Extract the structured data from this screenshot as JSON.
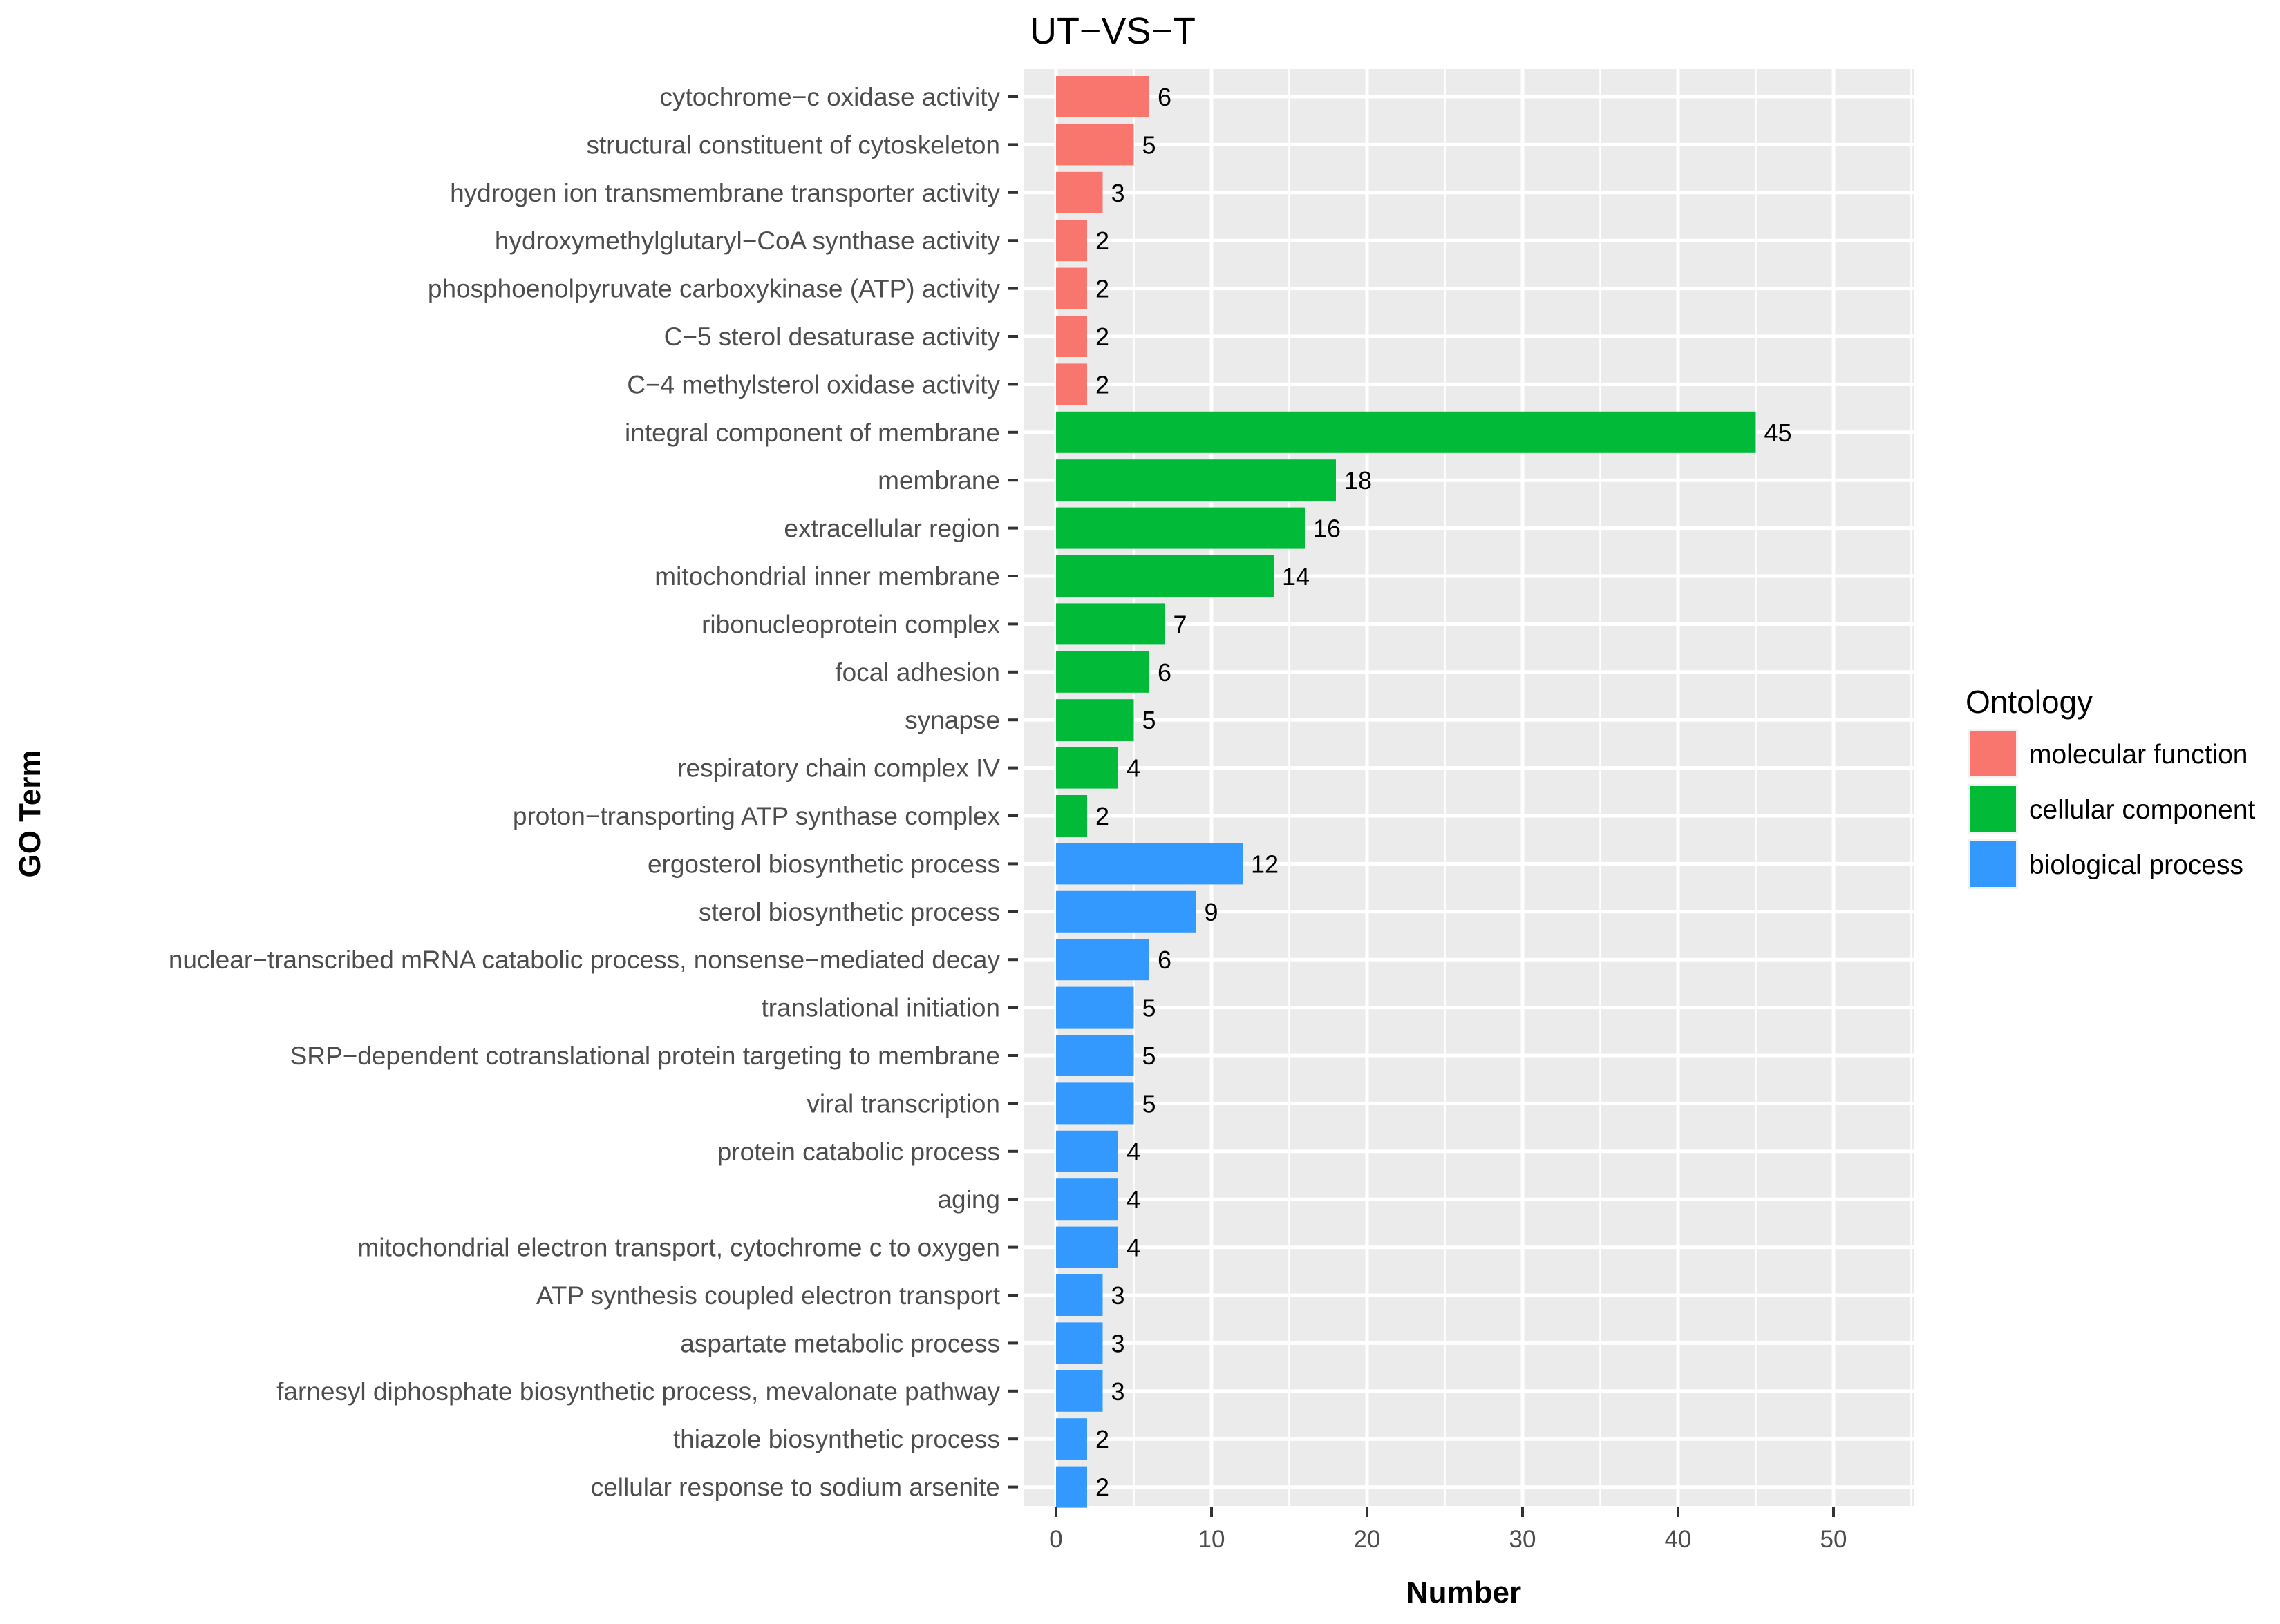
{
  "chart_data": {
    "type": "bar",
    "orientation": "horizontal",
    "title": "UT−VS−T",
    "xlabel": "Number",
    "ylabel": "GO Term",
    "xlim": [
      0,
      55
    ],
    "xticks": [
      0,
      10,
      20,
      30,
      40,
      50
    ],
    "grid": true,
    "legend": {
      "title": "Ontology",
      "placement": "right",
      "entries": [
        {
          "label": "molecular function",
          "color": "#F8766D"
        },
        {
          "label": "cellular component",
          "color": "#00BA38"
        },
        {
          "label": "biological process",
          "color": "#3399FF"
        }
      ]
    },
    "categories": [
      "cytochrome−c oxidase activity",
      "structural constituent of cytoskeleton",
      "hydrogen ion transmembrane transporter activity",
      "hydroxymethylglutaryl−CoA synthase activity",
      "phosphoenolpyruvate carboxykinase (ATP) activity",
      "C−5 sterol desaturase activity",
      "C−4 methylsterol oxidase activity",
      "integral component of membrane",
      "membrane",
      "extracellular region",
      "mitochondrial inner membrane",
      "ribonucleoprotein complex",
      "focal adhesion",
      "synapse",
      "respiratory chain complex IV",
      "proton−transporting ATP synthase complex",
      "ergosterol biosynthetic process",
      "sterol biosynthetic process",
      "nuclear−transcribed mRNA catabolic process, nonsense−mediated decay",
      "translational initiation",
      "SRP−dependent cotranslational protein targeting to membrane",
      "viral transcription",
      "protein catabolic process",
      "aging",
      "mitochondrial electron transport, cytochrome c to oxygen",
      "ATP synthesis coupled electron transport",
      "aspartate metabolic process",
      "farnesyl diphosphate biosynthetic process, mevalonate pathway",
      "thiazole biosynthetic process",
      "cellular response to sodium arsenite"
    ],
    "values": [
      6,
      5,
      3,
      2,
      2,
      2,
      2,
      45,
      18,
      16,
      14,
      7,
      6,
      5,
      4,
      2,
      12,
      9,
      6,
      5,
      5,
      5,
      4,
      4,
      4,
      3,
      3,
      3,
      2,
      2
    ],
    "groups": [
      "molecular function",
      "molecular function",
      "molecular function",
      "molecular function",
      "molecular function",
      "molecular function",
      "molecular function",
      "cellular component",
      "cellular component",
      "cellular component",
      "cellular component",
      "cellular component",
      "cellular component",
      "cellular component",
      "cellular component",
      "cellular component",
      "biological process",
      "biological process",
      "biological process",
      "biological process",
      "biological process",
      "biological process",
      "biological process",
      "biological process",
      "biological process",
      "biological process",
      "biological process",
      "biological process",
      "biological process",
      "biological process"
    ],
    "colors": {
      "panel_background": "#EBEBEB",
      "grid": "#FFFFFF"
    }
  }
}
